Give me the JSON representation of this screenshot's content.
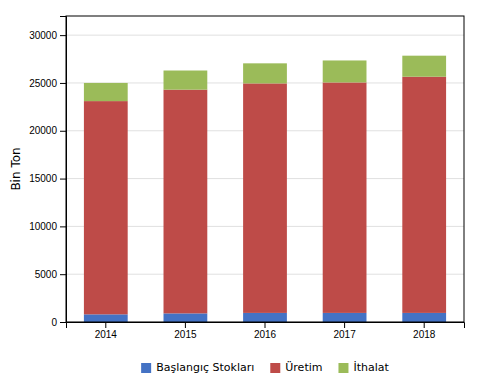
{
  "chart_data": {
    "type": "bar",
    "stacked": true,
    "categories": [
      "2014",
      "2015",
      "2016",
      "2017",
      "2018"
    ],
    "series": [
      {
        "name": "Başlangıç Stokları",
        "color": "#4472C4",
        "values": [
          800,
          900,
          950,
          950,
          950
        ]
      },
      {
        "name": "Üretim",
        "color": "#BE4B48",
        "values": [
          22300,
          23400,
          24000,
          24100,
          24700
        ]
      },
      {
        "name": "İthalat",
        "color": "#9BBB59",
        "values": [
          1900,
          2000,
          2100,
          2300,
          2200
        ]
      }
    ],
    "ylabel": "Bin Ton",
    "ylim": [
      0,
      32000
    ],
    "yticks": [
      0,
      5000,
      10000,
      15000,
      20000,
      25000,
      30000
    ],
    "grid": true,
    "legend": "bottom"
  }
}
